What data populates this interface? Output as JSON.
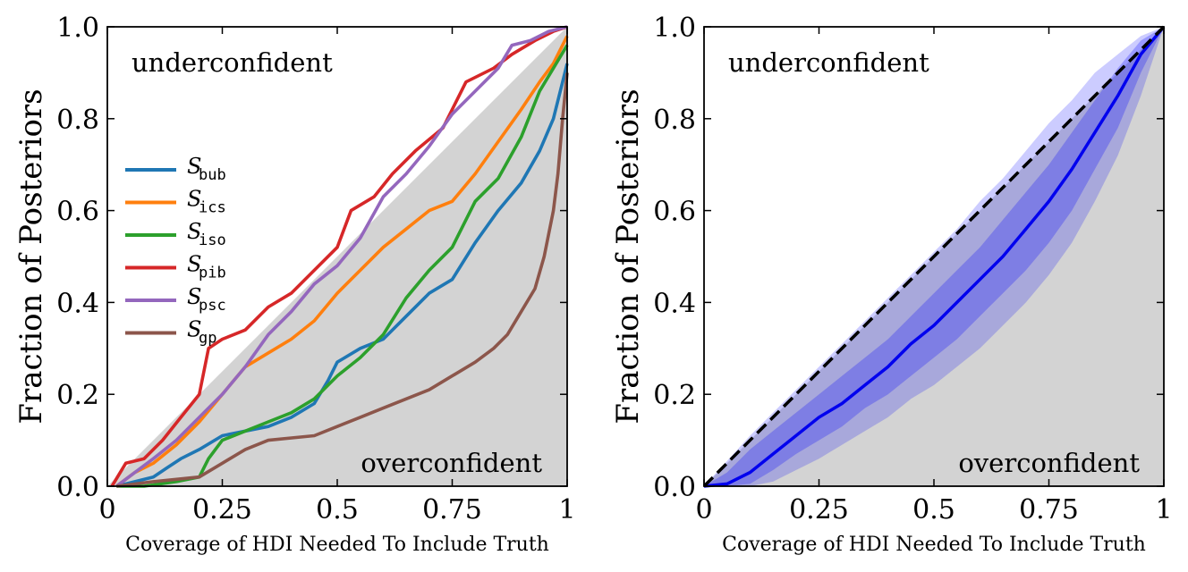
{
  "chart_data": [
    {
      "type": "line",
      "panel": "left",
      "xlabel": "Coverage of HDI Needed To Include Truth",
      "ylabel": "Fraction of Posteriors",
      "xlim": [
        0,
        1
      ],
      "ylim": [
        0,
        1
      ],
      "xticks": [
        0,
        0.25,
        0.5,
        0.75,
        1
      ],
      "xtick_labels": [
        "0",
        "0.25",
        "0.5",
        "0.75",
        "1"
      ],
      "yticks": [
        0,
        0.2,
        0.4,
        0.6,
        0.8,
        1
      ],
      "ytick_labels": [
        "0.0",
        "0.2",
        "0.4",
        "0.6",
        "0.8",
        "1.0"
      ],
      "annotations": {
        "top": "underconfident",
        "bottom": "overconfident"
      },
      "legend_position": "center-left",
      "series": [
        {
          "name": "S",
          "subscript": "bub",
          "color": "#1f77b4",
          "points": [
            [
              0.02,
              0
            ],
            [
              0.06,
              0.01
            ],
            [
              0.1,
              0.02
            ],
            [
              0.13,
              0.04
            ],
            [
              0.16,
              0.06
            ],
            [
              0.2,
              0.08
            ],
            [
              0.25,
              0.11
            ],
            [
              0.3,
              0.12
            ],
            [
              0.35,
              0.13
            ],
            [
              0.4,
              0.15
            ],
            [
              0.45,
              0.18
            ],
            [
              0.48,
              0.23
            ],
            [
              0.5,
              0.27
            ],
            [
              0.55,
              0.3
            ],
            [
              0.6,
              0.32
            ],
            [
              0.65,
              0.37
            ],
            [
              0.7,
              0.42
            ],
            [
              0.75,
              0.45
            ],
            [
              0.8,
              0.53
            ],
            [
              0.85,
              0.6
            ],
            [
              0.9,
              0.66
            ],
            [
              0.94,
              0.73
            ],
            [
              0.97,
              0.8
            ],
            [
              0.99,
              0.88
            ],
            [
              1,
              0.92
            ]
          ]
        },
        {
          "name": "S",
          "subscript": "ics",
          "color": "#ff7f0e",
          "points": [
            [
              0.02,
              0
            ],
            [
              0.06,
              0.03
            ],
            [
              0.1,
              0.05
            ],
            [
              0.15,
              0.09
            ],
            [
              0.2,
              0.14
            ],
            [
              0.25,
              0.2
            ],
            [
              0.3,
              0.26
            ],
            [
              0.35,
              0.29
            ],
            [
              0.4,
              0.32
            ],
            [
              0.45,
              0.36
            ],
            [
              0.5,
              0.42
            ],
            [
              0.55,
              0.47
            ],
            [
              0.6,
              0.52
            ],
            [
              0.65,
              0.56
            ],
            [
              0.7,
              0.6
            ],
            [
              0.75,
              0.62
            ],
            [
              0.8,
              0.68
            ],
            [
              0.85,
              0.75
            ],
            [
              0.9,
              0.82
            ],
            [
              0.94,
              0.88
            ],
            [
              0.97,
              0.92
            ],
            [
              1,
              0.98
            ]
          ]
        },
        {
          "name": "S",
          "subscript": "iso",
          "color": "#2ca02c",
          "points": [
            [
              0.02,
              0
            ],
            [
              0.08,
              0
            ],
            [
              0.15,
              0.01
            ],
            [
              0.2,
              0.02
            ],
            [
              0.22,
              0.06
            ],
            [
              0.25,
              0.1
            ],
            [
              0.3,
              0.12
            ],
            [
              0.35,
              0.14
            ],
            [
              0.4,
              0.16
            ],
            [
              0.45,
              0.19
            ],
            [
              0.5,
              0.24
            ],
            [
              0.55,
              0.28
            ],
            [
              0.6,
              0.33
            ],
            [
              0.65,
              0.41
            ],
            [
              0.7,
              0.47
            ],
            [
              0.75,
              0.52
            ],
            [
              0.8,
              0.62
            ],
            [
              0.85,
              0.67
            ],
            [
              0.9,
              0.76
            ],
            [
              0.94,
              0.86
            ],
            [
              0.97,
              0.91
            ],
            [
              1,
              0.96
            ]
          ]
        },
        {
          "name": "S",
          "subscript": "pib",
          "color": "#d62728",
          "points": [
            [
              0.01,
              0
            ],
            [
              0.04,
              0.05
            ],
            [
              0.08,
              0.06
            ],
            [
              0.12,
              0.1
            ],
            [
              0.16,
              0.15
            ],
            [
              0.2,
              0.2
            ],
            [
              0.22,
              0.3
            ],
            [
              0.25,
              0.32
            ],
            [
              0.3,
              0.34
            ],
            [
              0.35,
              0.39
            ],
            [
              0.4,
              0.42
            ],
            [
              0.45,
              0.47
            ],
            [
              0.5,
              0.52
            ],
            [
              0.53,
              0.6
            ],
            [
              0.58,
              0.63
            ],
            [
              0.62,
              0.68
            ],
            [
              0.67,
              0.73
            ],
            [
              0.73,
              0.78
            ],
            [
              0.78,
              0.88
            ],
            [
              0.84,
              0.91
            ],
            [
              0.88,
              0.94
            ],
            [
              0.93,
              0.97
            ],
            [
              0.97,
              0.99
            ],
            [
              1,
              1
            ]
          ]
        },
        {
          "name": "S",
          "subscript": "psc",
          "color": "#9467bd",
          "points": [
            [
              0.02,
              0
            ],
            [
              0.06,
              0.03
            ],
            [
              0.1,
              0.06
            ],
            [
              0.15,
              0.1
            ],
            [
              0.2,
              0.15
            ],
            [
              0.25,
              0.2
            ],
            [
              0.3,
              0.26
            ],
            [
              0.35,
              0.33
            ],
            [
              0.4,
              0.38
            ],
            [
              0.45,
              0.44
            ],
            [
              0.5,
              0.48
            ],
            [
              0.55,
              0.54
            ],
            [
              0.6,
              0.63
            ],
            [
              0.65,
              0.68
            ],
            [
              0.7,
              0.74
            ],
            [
              0.75,
              0.81
            ],
            [
              0.8,
              0.86
            ],
            [
              0.85,
              0.91
            ],
            [
              0.88,
              0.96
            ],
            [
              0.92,
              0.97
            ],
            [
              0.96,
              0.99
            ],
            [
              1,
              1
            ]
          ]
        },
        {
          "name": "S",
          "subscript": "gp",
          "color": "#8c564b",
          "points": [
            [
              0.02,
              0
            ],
            [
              0.1,
              0.01
            ],
            [
              0.2,
              0.02
            ],
            [
              0.25,
              0.05
            ],
            [
              0.3,
              0.08
            ],
            [
              0.35,
              0.1
            ],
            [
              0.45,
              0.11
            ],
            [
              0.5,
              0.13
            ],
            [
              0.55,
              0.15
            ],
            [
              0.6,
              0.17
            ],
            [
              0.65,
              0.19
            ],
            [
              0.7,
              0.21
            ],
            [
              0.75,
              0.24
            ],
            [
              0.8,
              0.27
            ],
            [
              0.84,
              0.3
            ],
            [
              0.87,
              0.33
            ],
            [
              0.9,
              0.38
            ],
            [
              0.93,
              0.43
            ],
            [
              0.95,
              0.5
            ],
            [
              0.97,
              0.6
            ],
            [
              0.98,
              0.68
            ],
            [
              0.99,
              0.8
            ],
            [
              1,
              0.9
            ]
          ]
        }
      ]
    },
    {
      "type": "area",
      "panel": "right",
      "xlabel": "Coverage of HDI Needed To Include Truth",
      "ylabel": "Fraction of Posteriors",
      "xlim": [
        0,
        1
      ],
      "ylim": [
        0,
        1
      ],
      "xticks": [
        0,
        0.25,
        0.5,
        0.75,
        1
      ],
      "xtick_labels": [
        "0",
        "0.25",
        "0.5",
        "0.75",
        "1"
      ],
      "yticks": [
        0,
        0.2,
        0.4,
        0.6,
        0.8,
        1
      ],
      "ytick_labels": [
        "0.0",
        "0.2",
        "0.4",
        "0.6",
        "0.8",
        "1.0"
      ],
      "annotations": {
        "top": "underconfident",
        "bottom": "overconfident"
      },
      "x": [
        0,
        0.05,
        0.1,
        0.15,
        0.2,
        0.25,
        0.3,
        0.35,
        0.4,
        0.45,
        0.5,
        0.55,
        0.6,
        0.65,
        0.7,
        0.75,
        0.8,
        0.85,
        0.9,
        0.95,
        1
      ],
      "median": [
        0,
        0.005,
        0.03,
        0.07,
        0.11,
        0.15,
        0.18,
        0.22,
        0.26,
        0.31,
        0.35,
        0.4,
        0.45,
        0.5,
        0.56,
        0.62,
        0.69,
        0.77,
        0.85,
        0.94,
        1
      ],
      "band_inner": {
        "lower": [
          0,
          0,
          0.005,
          0.035,
          0.07,
          0.1,
          0.13,
          0.17,
          0.2,
          0.24,
          0.28,
          0.32,
          0.37,
          0.42,
          0.47,
          0.53,
          0.6,
          0.69,
          0.78,
          0.9,
          1
        ],
        "upper": [
          0,
          0.03,
          0.08,
          0.12,
          0.16,
          0.2,
          0.24,
          0.28,
          0.32,
          0.37,
          0.42,
          0.47,
          0.52,
          0.58,
          0.64,
          0.7,
          0.77,
          0.84,
          0.91,
          0.97,
          1
        ]
      },
      "band_outer": {
        "lower": [
          0,
          0,
          0,
          0.01,
          0.035,
          0.06,
          0.09,
          0.12,
          0.15,
          0.19,
          0.22,
          0.26,
          0.3,
          0.35,
          0.4,
          0.46,
          0.53,
          0.62,
          0.72,
          0.85,
          1
        ],
        "upper": [
          0,
          0.055,
          0.11,
          0.16,
          0.21,
          0.26,
          0.31,
          0.36,
          0.41,
          0.46,
          0.51,
          0.56,
          0.62,
          0.67,
          0.73,
          0.79,
          0.84,
          0.9,
          0.94,
          0.98,
          1
        ]
      },
      "reference_line": {
        "style": "dashed",
        "points": [
          [
            0,
            0
          ],
          [
            1,
            1
          ]
        ],
        "color": "#000000"
      },
      "colors": {
        "median": "#0000ee",
        "band": "#0000ff",
        "shade": "#d3d3d3"
      }
    }
  ],
  "colors": {
    "overconfident_shade": "#d3d3d3"
  }
}
